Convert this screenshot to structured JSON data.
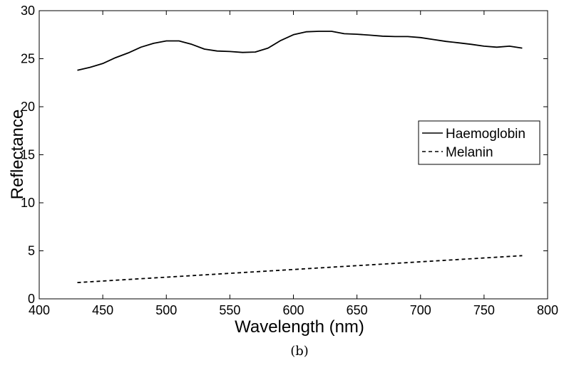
{
  "chart_data": {
    "type": "line",
    "caption": "(b)",
    "xlabel": "Wavelength (nm)",
    "ylabel": "Reflectance",
    "xlim": [
      400,
      800
    ],
    "ylim": [
      0,
      30
    ],
    "xticks": [
      400,
      450,
      500,
      550,
      600,
      650,
      700,
      750,
      800
    ],
    "yticks": [
      0,
      5,
      10,
      15,
      20,
      25,
      30
    ],
    "grid": false,
    "legend_position": "right",
    "series": [
      {
        "name": "Haemoglobin",
        "style": "solid",
        "color": "#000000",
        "x": [
          430,
          440,
          450,
          460,
          470,
          480,
          490,
          500,
          510,
          520,
          530,
          540,
          550,
          560,
          570,
          580,
          590,
          600,
          610,
          620,
          630,
          640,
          650,
          660,
          670,
          680,
          690,
          700,
          710,
          720,
          730,
          740,
          750,
          760,
          770,
          780
        ],
        "y": [
          23.8,
          24.1,
          24.5,
          25.1,
          25.6,
          26.2,
          26.6,
          26.85,
          26.85,
          26.5,
          26.0,
          25.8,
          25.75,
          25.65,
          25.7,
          26.1,
          26.9,
          27.5,
          27.8,
          27.85,
          27.85,
          27.6,
          27.55,
          27.45,
          27.35,
          27.3,
          27.3,
          27.2,
          27.0,
          26.8,
          26.65,
          26.5,
          26.3,
          26.2,
          26.3,
          26.1
        ]
      },
      {
        "name": "Melanin",
        "style": "dashed",
        "color": "#000000",
        "x": [
          430,
          780
        ],
        "y": [
          1.7,
          4.5
        ]
      }
    ]
  }
}
